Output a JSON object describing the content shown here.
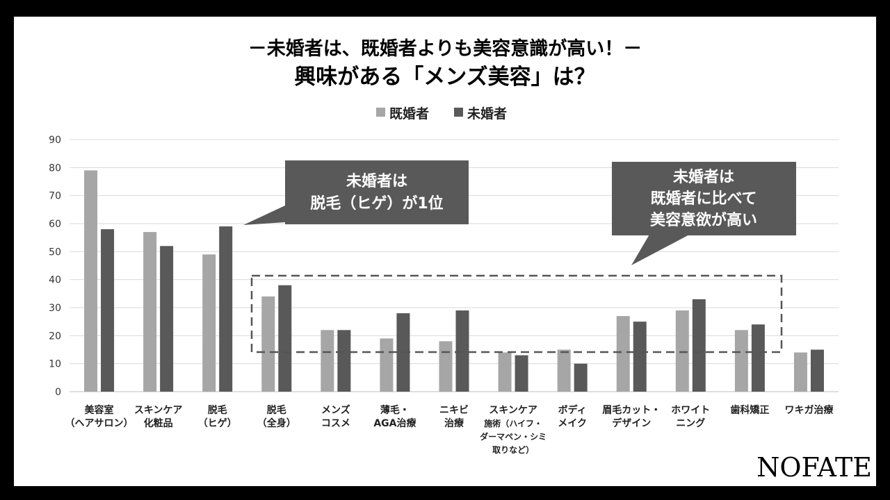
{
  "chart_data": {
    "type": "bar",
    "title": "－未婚者は、既婚者よりも美容意識が高い！－",
    "subtitle": "興味がある「メンズ美容」は？",
    "categories": [
      [
        "美容室",
        "（ヘアサロン）"
      ],
      [
        "スキンケア",
        "化粧品"
      ],
      [
        "脱毛",
        "（ヒゲ）"
      ],
      [
        "脱毛",
        "（全身）"
      ],
      [
        "メンズ",
        "コスメ"
      ],
      [
        "薄毛・",
        "AGA治療"
      ],
      [
        "ニキビ",
        "治療"
      ],
      [
        "スキンケア",
        "施術（ハイフ・",
        "ダーマペン・シミ",
        "取りなど）"
      ],
      [
        "ボディ",
        "メイク"
      ],
      [
        "眉毛カット・",
        "デザイン"
      ],
      [
        "ホワイト",
        "ニング"
      ],
      [
        "歯科矯正"
      ],
      [
        "ワキガ治療"
      ]
    ],
    "series": [
      {
        "name": "既婚者",
        "color": "#a6a6a6",
        "values": [
          79,
          57,
          49,
          34,
          22,
          19,
          18,
          14,
          15,
          27,
          29,
          22,
          14
        ]
      },
      {
        "name": "未婚者",
        "color": "#595959",
        "values": [
          58,
          52,
          59,
          38,
          22,
          28,
          29,
          13,
          10,
          25,
          33,
          24,
          15
        ]
      }
    ],
    "ylim": [
      0,
      90
    ],
    "yticks": [
      0,
      10,
      20,
      30,
      40,
      50,
      60,
      70,
      80,
      90
    ],
    "grid": true,
    "legend": "top-center",
    "annotations": [
      {
        "lines": [
          "未婚者は",
          "脱毛（ヒゲ）が1位"
        ]
      },
      {
        "lines": [
          "未婚者は",
          "既婚者に比べて",
          "美容意欲が高い"
        ]
      }
    ]
  },
  "brand": {
    "logo": "NOFATE"
  }
}
